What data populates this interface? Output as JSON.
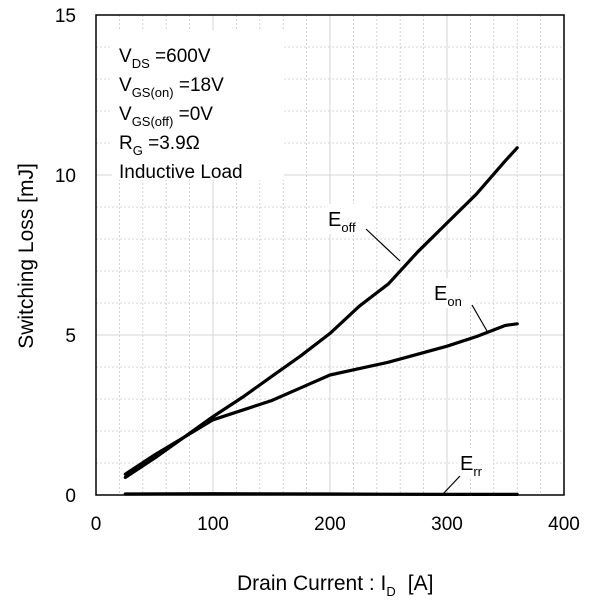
{
  "chart_data": {
    "type": "line",
    "xlabel": "Drain Current : I",
    "xlabel_sub": "D",
    "xlabel_unit": "[A]",
    "ylabel": "Switching Loss  [mJ]",
    "xlim": [
      0,
      400
    ],
    "ylim": [
      0,
      15
    ],
    "x_ticks": [
      0,
      100,
      200,
      300,
      400
    ],
    "y_ticks": [
      0,
      5,
      10,
      15
    ],
    "x_tick_labels": [
      "0",
      "100",
      "200",
      "300",
      "400"
    ],
    "y_tick_labels": [
      "0",
      "5",
      "10",
      "15"
    ],
    "grid": true,
    "conditions": [
      {
        "main": "V",
        "sub": "DS",
        "rest": " =600V"
      },
      {
        "main": "V",
        "sub": "GS(on)",
        "rest": " =18V"
      },
      {
        "main": "V",
        "sub": "GS(off)",
        "rest": " =0V"
      },
      {
        "main": "R",
        "sub": "G",
        "rest": " =3.9Ω"
      },
      {
        "main": "Inductive Load",
        "sub": "",
        "rest": ""
      }
    ],
    "series": [
      {
        "name": "Eoff",
        "label_main": "E",
        "label_sub": "off",
        "x": [
          25,
          50,
          75,
          100,
          125,
          150,
          175,
          200,
          225,
          250,
          275,
          300,
          325,
          350,
          360
        ],
        "y": [
          0.55,
          1.15,
          1.8,
          2.45,
          3.05,
          3.7,
          4.35,
          5.05,
          5.9,
          6.6,
          7.6,
          8.5,
          9.4,
          10.45,
          10.85
        ]
      },
      {
        "name": "Eon",
        "label_main": "E",
        "label_sub": "on",
        "x": [
          25,
          50,
          75,
          100,
          125,
          150,
          175,
          200,
          225,
          250,
          275,
          300,
          325,
          350,
          360
        ],
        "y": [
          0.65,
          1.25,
          1.8,
          2.35,
          2.65,
          2.95,
          3.35,
          3.75,
          3.95,
          4.15,
          4.4,
          4.65,
          4.95,
          5.3,
          5.35
        ]
      },
      {
        "name": "Err",
        "label_main": "E",
        "label_sub": "rr",
        "x": [
          25,
          100,
          200,
          300,
          360
        ],
        "y": [
          0.03,
          0.04,
          0.03,
          0.02,
          0.02
        ]
      }
    ]
  }
}
